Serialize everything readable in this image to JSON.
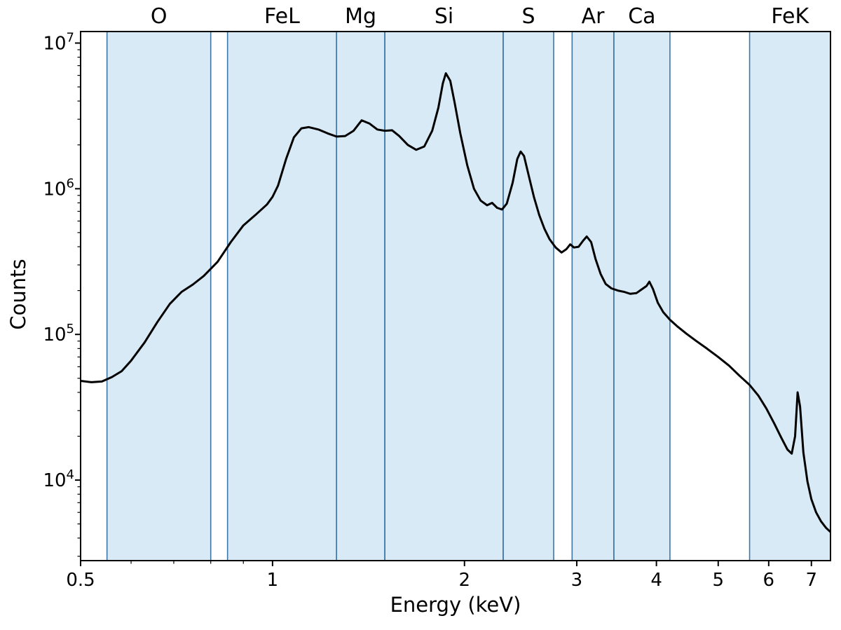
{
  "chart_data": {
    "type": "line",
    "title": "",
    "xlabel": "Energy (keV)",
    "ylabel": "Counts",
    "x_scale": "log",
    "y_scale": "log",
    "xlim": [
      0.5,
      7.5
    ],
    "ylim": [
      2800,
      12000000
    ],
    "x_ticks": [
      0.5,
      1,
      2,
      3,
      4,
      5,
      6,
      7
    ],
    "x_tick_labels": [
      "0.5",
      "1",
      "2",
      "3",
      "4",
      "5",
      "6",
      "7"
    ],
    "x_minor_ticks": [
      0.6,
      0.7,
      0.8,
      0.9
    ],
    "y_tick_exponents": [
      4,
      5,
      6,
      7
    ],
    "grid": false,
    "legend": null,
    "colors": {
      "line": "#000000",
      "band_fill": "#d9eaf7",
      "band_edge": "#3f76a8",
      "axis": "#000000",
      "text": "#000000"
    },
    "bands": [
      {
        "label": "O",
        "range_kev": [
          0.55,
          0.8
        ]
      },
      {
        "label": "FeL",
        "range_kev": [
          0.85,
          1.26
        ]
      },
      {
        "label": "Mg",
        "range_kev": [
          1.26,
          1.5
        ]
      },
      {
        "label": "Si",
        "range_kev": [
          1.5,
          2.3
        ]
      },
      {
        "label": "S",
        "range_kev": [
          2.3,
          2.76
        ]
      },
      {
        "label": "Ar",
        "range_kev": [
          2.95,
          3.43
        ]
      },
      {
        "label": "Ca",
        "range_kev": [
          3.43,
          4.2
        ]
      },
      {
        "label": "FeK",
        "range_kev": [
          5.6,
          7.5
        ]
      }
    ],
    "series": [
      {
        "name": "spectrum",
        "x_kev": [
          0.5,
          0.52,
          0.54,
          0.56,
          0.58,
          0.6,
          0.63,
          0.66,
          0.69,
          0.72,
          0.75,
          0.78,
          0.82,
          0.86,
          0.9,
          0.94,
          0.98,
          1.0,
          1.02,
          1.05,
          1.08,
          1.11,
          1.14,
          1.18,
          1.22,
          1.26,
          1.3,
          1.34,
          1.38,
          1.42,
          1.46,
          1.5,
          1.54,
          1.58,
          1.63,
          1.68,
          1.73,
          1.78,
          1.82,
          1.85,
          1.87,
          1.9,
          1.93,
          1.97,
          2.02,
          2.07,
          2.12,
          2.17,
          2.21,
          2.25,
          2.29,
          2.33,
          2.38,
          2.42,
          2.45,
          2.48,
          2.52,
          2.57,
          2.62,
          2.67,
          2.72,
          2.78,
          2.84,
          2.89,
          2.93,
          2.97,
          3.02,
          3.07,
          3.11,
          3.16,
          3.21,
          3.27,
          3.33,
          3.4,
          3.48,
          3.56,
          3.64,
          3.72,
          3.8,
          3.86,
          3.9,
          3.95,
          4.02,
          4.1,
          4.2,
          4.32,
          4.46,
          4.62,
          4.8,
          5.0,
          5.2,
          5.4,
          5.6,
          5.78,
          5.95,
          6.12,
          6.28,
          6.42,
          6.52,
          6.6,
          6.66,
          6.72,
          6.8,
          6.9,
          7.0,
          7.12,
          7.25,
          7.38,
          7.5
        ],
        "counts": [
          48000,
          47000,
          47500,
          51000,
          56000,
          66000,
          88000,
          122000,
          162000,
          196000,
          220000,
          252000,
          315000,
          430000,
          560000,
          660000,
          780000,
          880000,
          1050000,
          1600000,
          2250000,
          2600000,
          2650000,
          2550000,
          2400000,
          2280000,
          2300000,
          2500000,
          2950000,
          2800000,
          2550000,
          2500000,
          2520000,
          2300000,
          2000000,
          1850000,
          1950000,
          2500000,
          3600000,
          5300000,
          6200000,
          5500000,
          3900000,
          2400000,
          1450000,
          1000000,
          830000,
          770000,
          800000,
          740000,
          720000,
          790000,
          1100000,
          1600000,
          1800000,
          1680000,
          1250000,
          880000,
          660000,
          530000,
          450000,
          395000,
          365000,
          385000,
          415000,
          395000,
          400000,
          440000,
          470000,
          430000,
          330000,
          260000,
          222000,
          207000,
          200000,
          196000,
          190000,
          192000,
          205000,
          215000,
          230000,
          205000,
          165000,
          142000,
          126000,
          113000,
          101000,
          90000,
          80000,
          70000,
          61000,
          52000,
          45000,
          38000,
          31000,
          24500,
          19500,
          16200,
          15200,
          20000,
          40000,
          32000,
          15500,
          9800,
          7400,
          6000,
          5200,
          4700,
          4400
        ]
      }
    ]
  }
}
